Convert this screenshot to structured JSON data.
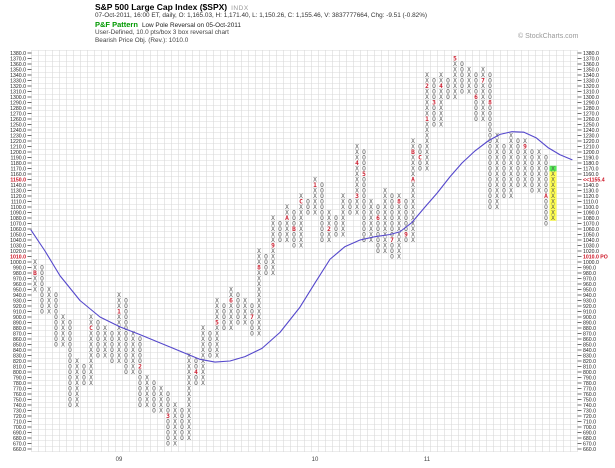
{
  "header": {
    "title": "S&P 500 Large Cap Index ($SPX)",
    "title_suffix": "INDX",
    "quote_line": "07-Oct-2011, 16:00 ET, daily, O: 1,165.03, H: 1,171.40, L: 1,150.26, C: 1,155.46, V: 3837777664, Chg: -9.51 (-0.82%)",
    "pattern_label": "P&F Pattern",
    "pattern_text": "Low Pole Reversal on 05-Oct-2011",
    "settings_line": "User-Defined, 10.0 pts/box 3 box reversal chart",
    "objective_line": "Bearish Price Obj. (Rev.): 1010.0",
    "credit": "© StockCharts.com"
  },
  "chart_data": {
    "type": "point-and-figure",
    "title": "S&P 500 Large Cap Index ($SPX) P&F",
    "box_size": 10.0,
    "reversal_boxes": 3,
    "ylim": [
      660,
      1380
    ],
    "y_tick_step": 10,
    "grid": true,
    "current_price": 1155.4,
    "bearish_price_objective": 1010.0,
    "left_red_values": [
      1150,
      1010
    ],
    "right_label_overrides": {
      "1150": "<<1155.4",
      "1010": "1010.0 PO"
    },
    "x_year_labels": [
      {
        "label": "09",
        "col": 12
      },
      {
        "label": "10",
        "col": 40
      },
      {
        "label": "11",
        "col": 56
      }
    ],
    "columns": [
      {
        "t": "X",
        "lo": 950,
        "hi": 1000,
        "m": [
          [
            980,
            "B"
          ]
        ]
      },
      {
        "t": "O",
        "lo": 910,
        "hi": 990
      },
      {
        "t": "X",
        "lo": 910,
        "hi": 950
      },
      {
        "t": "O",
        "lo": 850,
        "hi": 940
      },
      {
        "t": "X",
        "lo": 850,
        "hi": 900
      },
      {
        "t": "O",
        "lo": 740,
        "hi": 890
      },
      {
        "t": "X",
        "lo": 740,
        "hi": 820
      },
      {
        "t": "O",
        "lo": 780,
        "hi": 810
      },
      {
        "t": "X",
        "lo": 780,
        "hi": 900,
        "m": [
          [
            880,
            "C"
          ]
        ]
      },
      {
        "t": "O",
        "lo": 830,
        "hi": 890
      },
      {
        "t": "X",
        "lo": 830,
        "hi": 880
      },
      {
        "t": "O",
        "lo": 820,
        "hi": 870
      },
      {
        "t": "X",
        "lo": 820,
        "hi": 940,
        "m": [
          [
            910,
            "1"
          ]
        ]
      },
      {
        "t": "O",
        "lo": 800,
        "hi": 930
      },
      {
        "t": "X",
        "lo": 800,
        "hi": 870
      },
      {
        "t": "O",
        "lo": 740,
        "hi": 860,
        "m": [
          [
            810,
            "2"
          ]
        ]
      },
      {
        "t": "X",
        "lo": 740,
        "hi": 790
      },
      {
        "t": "O",
        "lo": 730,
        "hi": 780
      },
      {
        "t": "X",
        "lo": 730,
        "hi": 770
      },
      {
        "t": "O",
        "lo": 670,
        "hi": 760,
        "m": [
          [
            720,
            "3"
          ]
        ]
      },
      {
        "t": "X",
        "lo": 670,
        "hi": 740
      },
      {
        "t": "O",
        "lo": 680,
        "hi": 730
      },
      {
        "t": "X",
        "lo": 680,
        "hi": 830
      },
      {
        "t": "O",
        "lo": 780,
        "hi": 820,
        "m": [
          [
            800,
            "4"
          ]
        ]
      },
      {
        "t": "X",
        "lo": 780,
        "hi": 880
      },
      {
        "t": "O",
        "lo": 830,
        "hi": 870
      },
      {
        "t": "X",
        "lo": 830,
        "hi": 930,
        "m": [
          [
            890,
            "5"
          ]
        ]
      },
      {
        "t": "O",
        "lo": 880,
        "hi": 920
      },
      {
        "t": "X",
        "lo": 880,
        "hi": 950,
        "m": [
          [
            930,
            "6"
          ]
        ]
      },
      {
        "t": "O",
        "lo": 890,
        "hi": 940
      },
      {
        "t": "X",
        "lo": 890,
        "hi": 930
      },
      {
        "t": "O",
        "lo": 870,
        "hi": 920,
        "m": [
          [
            900,
            "7"
          ]
        ]
      },
      {
        "t": "X",
        "lo": 870,
        "hi": 1020,
        "m": [
          [
            990,
            "8"
          ]
        ]
      },
      {
        "t": "O",
        "lo": 980,
        "hi": 1010
      },
      {
        "t": "X",
        "lo": 980,
        "hi": 1080,
        "m": [
          [
            1030,
            "9"
          ]
        ]
      },
      {
        "t": "O",
        "lo": 1040,
        "hi": 1070
      },
      {
        "t": "X",
        "lo": 1040,
        "hi": 1100,
        "m": [
          [
            1080,
            "A"
          ]
        ]
      },
      {
        "t": "O",
        "lo": 1030,
        "hi": 1090,
        "m": [
          [
            1060,
            "B"
          ]
        ]
      },
      {
        "t": "X",
        "lo": 1030,
        "hi": 1120,
        "m": [
          [
            1110,
            "C"
          ]
        ]
      },
      {
        "t": "O",
        "lo": 1090,
        "hi": 1110
      },
      {
        "t": "X",
        "lo": 1090,
        "hi": 1150,
        "m": [
          [
            1140,
            "1"
          ]
        ]
      },
      {
        "t": "O",
        "lo": 1040,
        "hi": 1140
      },
      {
        "t": "X",
        "lo": 1040,
        "hi": 1090,
        "m": [
          [
            1060,
            "2"
          ]
        ]
      },
      {
        "t": "O",
        "lo": 1050,
        "hi": 1080
      },
      {
        "t": "X",
        "lo": 1050,
        "hi": 1120
      },
      {
        "t": "O",
        "lo": 1090,
        "hi": 1110
      },
      {
        "t": "X",
        "lo": 1090,
        "hi": 1210,
        "m": [
          [
            1120,
            "3"
          ],
          [
            1180,
            "4"
          ]
        ]
      },
      {
        "t": "O",
        "lo": 1040,
        "hi": 1200,
        "m": [
          [
            1160,
            "5"
          ]
        ]
      },
      {
        "t": "X",
        "lo": 1040,
        "hi": 1110
      },
      {
        "t": "O",
        "lo": 1020,
        "hi": 1100,
        "m": [
          [
            1080,
            "6"
          ]
        ]
      },
      {
        "t": "X",
        "lo": 1020,
        "hi": 1130
      },
      {
        "t": "O",
        "lo": 1010,
        "hi": 1120,
        "m": [
          [
            1040,
            "7"
          ]
        ]
      },
      {
        "t": "X",
        "lo": 1010,
        "hi": 1120,
        "m": [
          [
            1110,
            "8"
          ]
        ]
      },
      {
        "t": "O",
        "lo": 1040,
        "hi": 1110,
        "m": [
          [
            1050,
            "9"
          ]
        ]
      },
      {
        "t": "X",
        "lo": 1040,
        "hi": 1220,
        "m": [
          [
            1150,
            "A"
          ],
          [
            1200,
            "B"
          ]
        ]
      },
      {
        "t": "O",
        "lo": 1170,
        "hi": 1210,
        "m": [
          [
            1190,
            "C"
          ]
        ]
      },
      {
        "t": "X",
        "lo": 1170,
        "hi": 1340,
        "m": [
          [
            1260,
            "1"
          ],
          [
            1320,
            "2"
          ]
        ]
      },
      {
        "t": "O",
        "lo": 1250,
        "hi": 1330,
        "m": [
          [
            1290,
            "3"
          ]
        ]
      },
      {
        "t": "X",
        "lo": 1250,
        "hi": 1340,
        "m": [
          [
            1320,
            "4"
          ]
        ]
      },
      {
        "t": "O",
        "lo": 1300,
        "hi": 1330
      },
      {
        "t": "X",
        "lo": 1300,
        "hi": 1370,
        "m": [
          [
            1370,
            "5"
          ]
        ]
      },
      {
        "t": "O",
        "lo": 1310,
        "hi": 1360
      },
      {
        "t": "X",
        "lo": 1310,
        "hi": 1350
      },
      {
        "t": "O",
        "lo": 1260,
        "hi": 1340,
        "m": [
          [
            1300,
            "6"
          ]
        ]
      },
      {
        "t": "X",
        "lo": 1260,
        "hi": 1350,
        "m": [
          [
            1330,
            "7"
          ]
        ]
      },
      {
        "t": "O",
        "lo": 1100,
        "hi": 1340,
        "m": [
          [
            1290,
            "8"
          ]
        ]
      },
      {
        "t": "X",
        "lo": 1100,
        "hi": 1230
      },
      {
        "t": "O",
        "lo": 1120,
        "hi": 1210
      },
      {
        "t": "X",
        "lo": 1120,
        "hi": 1230
      },
      {
        "t": "O",
        "lo": 1140,
        "hi": 1220
      },
      {
        "t": "X",
        "lo": 1140,
        "hi": 1220,
        "m": [
          [
            1210,
            "9"
          ]
        ]
      },
      {
        "t": "O",
        "lo": 1130,
        "hi": 1200
      },
      {
        "t": "X",
        "lo": 1130,
        "hi": 1200
      },
      {
        "t": "O",
        "lo": 1070,
        "hi": 1190,
        "m": [
          [
            1120,
            "A"
          ]
        ]
      },
      {
        "t": "X",
        "lo": 1080,
        "hi": 1170,
        "hl": true
      }
    ],
    "ma_line": {
      "points": [
        [
          31,
          1058
        ],
        [
          45,
          1020
        ],
        [
          60,
          975
        ],
        [
          80,
          930
        ],
        [
          100,
          900
        ],
        [
          120,
          882
        ],
        [
          140,
          868
        ],
        [
          160,
          853
        ],
        [
          180,
          838
        ],
        [
          200,
          823
        ],
        [
          215,
          818
        ],
        [
          230,
          820
        ],
        [
          245,
          828
        ],
        [
          262,
          843
        ],
        [
          280,
          872
        ],
        [
          300,
          918
        ],
        [
          315,
          962
        ],
        [
          330,
          1005
        ],
        [
          345,
          1028
        ],
        [
          360,
          1040
        ],
        [
          375,
          1046
        ],
        [
          390,
          1050
        ],
        [
          400,
          1055
        ],
        [
          412,
          1072
        ],
        [
          425,
          1100
        ],
        [
          437,
          1125
        ],
        [
          450,
          1155
        ],
        [
          462,
          1180
        ],
        [
          475,
          1202
        ],
        [
          488,
          1220
        ],
        [
          500,
          1232
        ],
        [
          512,
          1237
        ],
        [
          524,
          1236
        ],
        [
          536,
          1226
        ],
        [
          548,
          1208
        ],
        [
          560,
          1195
        ],
        [
          572,
          1186
        ]
      ]
    },
    "colors": {
      "grid": "#d9d9d9",
      "mark": "#555555",
      "marker_red": "#cc2233",
      "ma_line": "#5548cc",
      "highlight_body": "#ffff4d",
      "highlight_top": "#55ee55",
      "axis_label": "#222222",
      "axis_red": "#cc1122",
      "tick": "#333333",
      "year_label": "#444444"
    }
  }
}
